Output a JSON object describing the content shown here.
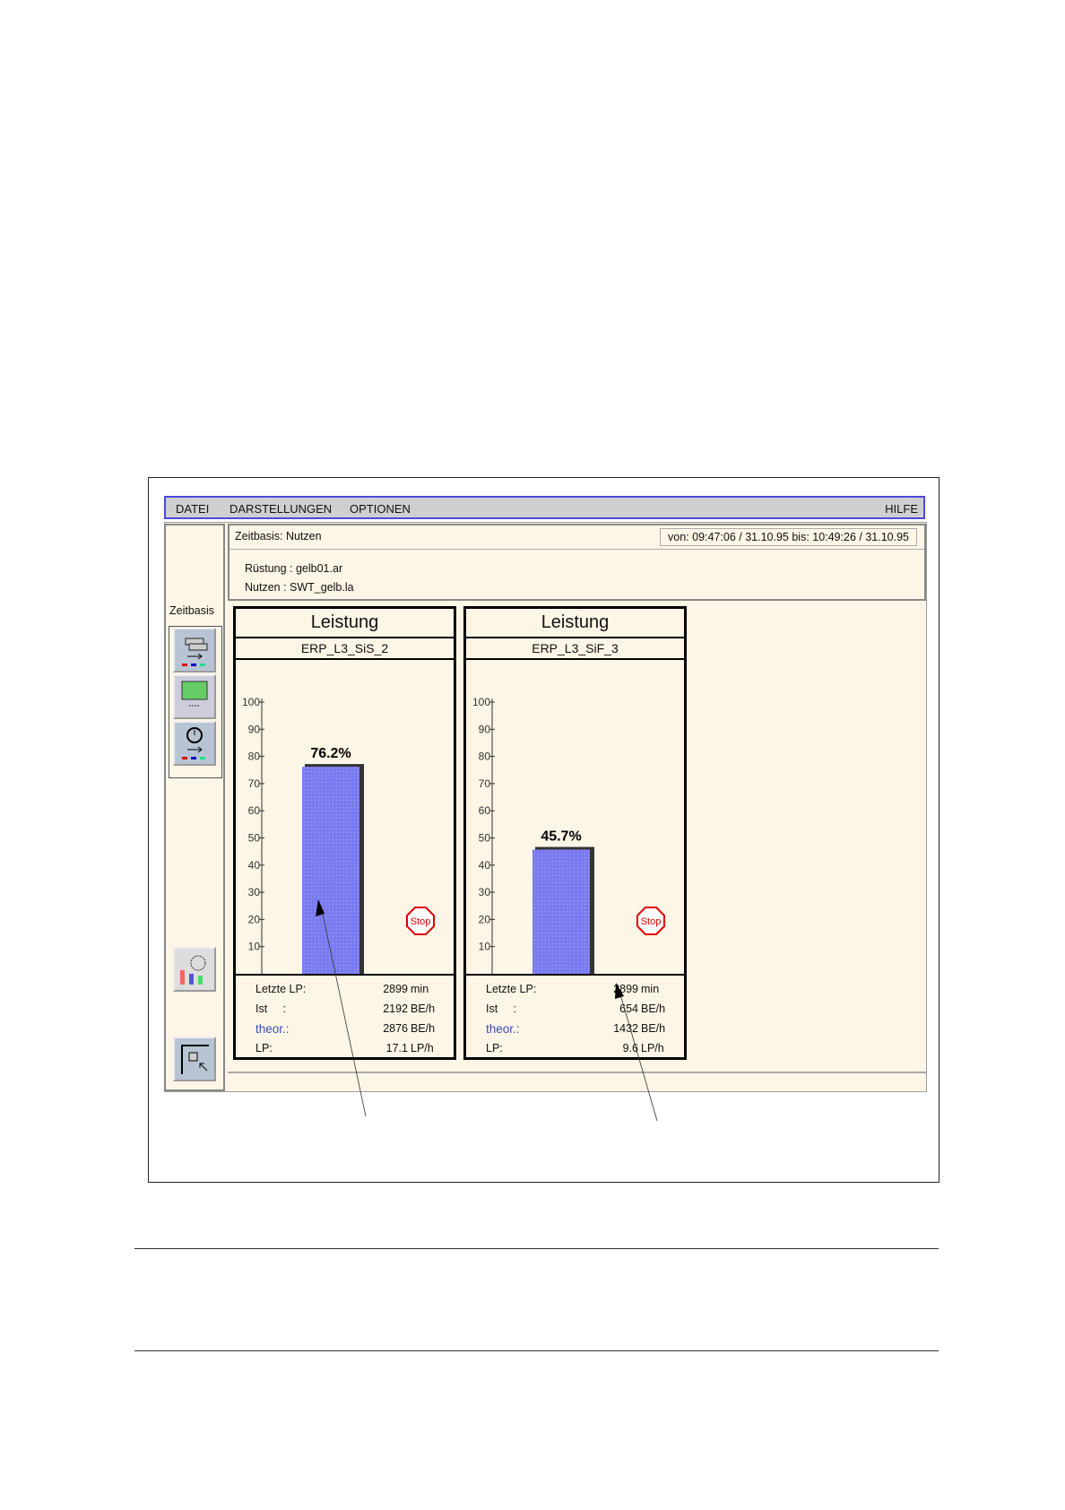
{
  "menu": {
    "items": [
      "DATEI",
      "DARSTELLUNGEN",
      "OPTIONEN"
    ],
    "help": "HILFE"
  },
  "sidebar": {
    "label": "Zeitbasis",
    "tools": [
      "stack-arrow-icon",
      "monitor-icon",
      "clock-arrow-icon"
    ],
    "bottom_tools": [
      "chart-clock-icon",
      "select-cursor-icon"
    ]
  },
  "header": {
    "zeitbasis": "Zeitbasis:  Nutzen",
    "range": "von: 09:47:06 /  31.10.95    bis: 10:49:26 /  31.10.95",
    "ruestung": "Rüstung :  gelb01.ar",
    "nutzen": "Nutzen  :  SWT_gelb.la"
  },
  "colors": {
    "bar": "#7b7bf0",
    "stop": "#e00000",
    "background": "#fdf5e6",
    "menu_border": "#4a4ae0",
    "theor_label": "#3a4fb0"
  },
  "panels": [
    {
      "title": "Leistung",
      "subtitle": "ERP_L3_SiS_2",
      "bar_label": "76.2%",
      "stop_label": "Stop",
      "stats": [
        {
          "label": "Letzte LP:",
          "value": "2899",
          "unit": "min"
        },
        {
          "label": "Ist     :",
          "value": "2192",
          "unit": "BE/h"
        },
        {
          "label": "theor.:",
          "value": "2876",
          "unit": "BE/h"
        },
        {
          "label": "LP:",
          "value": "17.1",
          "unit": "LP/h"
        }
      ]
    },
    {
      "title": "Leistung",
      "subtitle": "ERP_L3_SiF_3",
      "bar_label": "45.7%",
      "stop_label": "Stop",
      "stats": [
        {
          "label": "Letzte LP:",
          "value": "2899",
          "unit": "min"
        },
        {
          "label": "Ist     :",
          "value": "654",
          "unit": "BE/h"
        },
        {
          "label": "theor.:",
          "value": "1432",
          "unit": "BE/h"
        },
        {
          "label": "LP:",
          "value": "9.6",
          "unit": "LP/h"
        }
      ]
    }
  ],
  "chart_data": [
    {
      "type": "bar",
      "title": "Leistung",
      "subtitle": "ERP_L3_SiS_2",
      "values": [
        76.2
      ],
      "labels": [
        "76.2%"
      ],
      "ylim": [
        0,
        100
      ],
      "yticks": [
        10,
        20,
        30,
        40,
        50,
        60,
        70,
        80,
        90,
        100
      ],
      "grid": false
    },
    {
      "type": "bar",
      "title": "Leistung",
      "subtitle": "ERP_L3_SiF_3",
      "values": [
        45.7
      ],
      "labels": [
        "45.7%"
      ],
      "ylim": [
        0,
        100
      ],
      "yticks": [
        10,
        20,
        30,
        40,
        50,
        60,
        70,
        80,
        90,
        100
      ],
      "grid": false
    }
  ]
}
